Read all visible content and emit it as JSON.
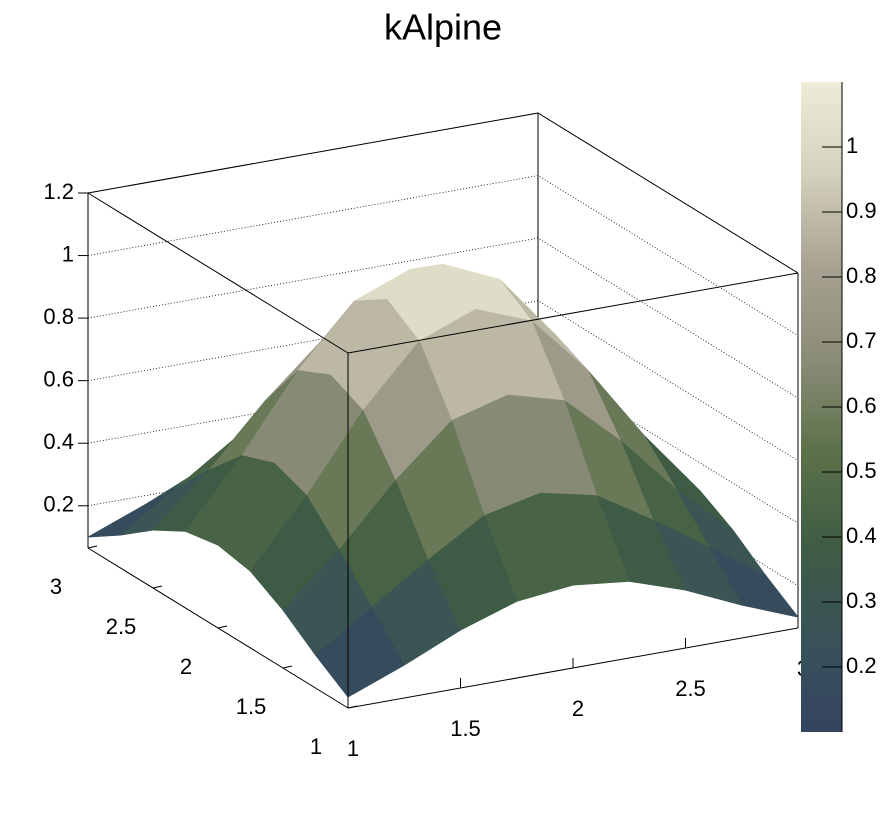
{
  "chart_data": {
    "type": "surface",
    "title": "kAlpine",
    "x": [
      1,
      1.25,
      1.5,
      1.75,
      2,
      2.25,
      2.5,
      2.75,
      3
    ],
    "y": [
      1,
      1.25,
      1.5,
      1.75,
      2,
      2.25,
      2.5,
      2.75,
      3
    ],
    "z": [
      [
        0.1,
        0.17,
        0.25,
        0.31,
        0.33,
        0.31,
        0.25,
        0.17,
        0.1
      ],
      [
        0.17,
        0.29,
        0.41,
        0.52,
        0.56,
        0.52,
        0.41,
        0.29,
        0.17
      ],
      [
        0.25,
        0.41,
        0.6,
        0.76,
        0.81,
        0.76,
        0.6,
        0.41,
        0.25
      ],
      [
        0.31,
        0.52,
        0.76,
        0.95,
        1.02,
        0.95,
        0.76,
        0.52,
        0.31
      ],
      [
        0.33,
        0.56,
        0.81,
        1.02,
        1.1,
        1.02,
        0.81,
        0.56,
        0.33
      ],
      [
        0.31,
        0.52,
        0.76,
        0.95,
        1.02,
        0.95,
        0.76,
        0.52,
        0.31
      ],
      [
        0.25,
        0.41,
        0.6,
        0.76,
        0.81,
        0.76,
        0.6,
        0.41,
        0.25
      ],
      [
        0.17,
        0.29,
        0.41,
        0.52,
        0.56,
        0.52,
        0.41,
        0.29,
        0.17
      ],
      [
        0.1,
        0.17,
        0.25,
        0.31,
        0.33,
        0.31,
        0.25,
        0.17,
        0.1
      ]
    ],
    "xlim": [
      1,
      3
    ],
    "ylim": [
      1,
      3
    ],
    "zlim": [
      0.065,
      1.2
    ],
    "xticks": [
      1,
      1.5,
      2,
      2.5,
      3
    ],
    "yticks": [
      1,
      1.5,
      2,
      2.5,
      3
    ],
    "zticks": [
      0.2,
      0.4,
      0.6,
      0.8,
      1,
      1.2
    ],
    "grid": true,
    "colorbar": {
      "lim": [
        0.1,
        1.1
      ],
      "ticks": [
        0.2,
        0.3,
        0.4,
        0.5,
        0.6,
        0.7,
        0.8,
        0.9,
        1
      ],
      "palette": [
        "#344461",
        "#385259",
        "#3f5c44",
        "#5b7149",
        "#8a8c77",
        "#a8a192",
        "#d3d0bb",
        "#eeecd6"
      ]
    }
  }
}
